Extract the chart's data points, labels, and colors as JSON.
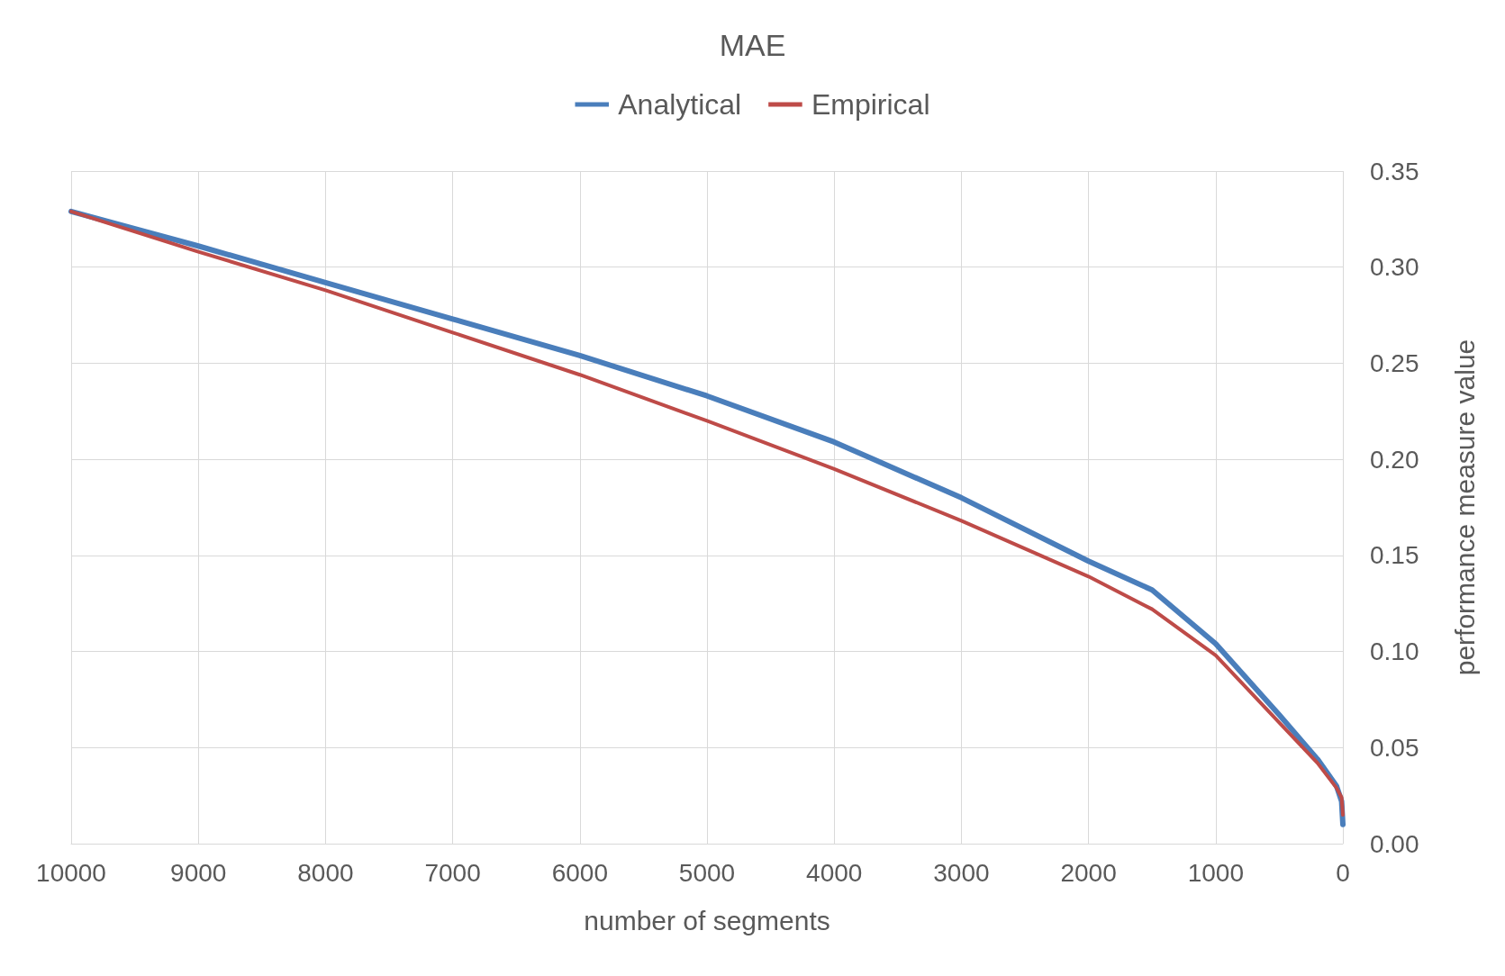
{
  "chart_data": {
    "type": "line",
    "title": "MAE",
    "xlabel": "number of segments",
    "ylabel": "performance measure value",
    "xlim": [
      10000,
      0
    ],
    "xticks": [
      10000,
      9000,
      8000,
      7000,
      6000,
      5000,
      4000,
      3000,
      2000,
      1000,
      0
    ],
    "ylim": [
      0,
      0.35
    ],
    "yticks": [
      {
        "value": 0,
        "label": "0.00"
      },
      {
        "value": 0.05,
        "label": "0.05"
      },
      {
        "value": 0.1,
        "label": "0.10"
      },
      {
        "value": 0.15,
        "label": "0.15"
      },
      {
        "value": 0.2,
        "label": "0.20"
      },
      {
        "value": 0.25,
        "label": "0.25"
      },
      {
        "value": 0.3,
        "label": "0.30"
      },
      {
        "value": 0.35,
        "label": "0.35"
      }
    ],
    "x": [
      10000,
      9000,
      8000,
      7000,
      6000,
      5000,
      4000,
      3000,
      2000,
      1500,
      1000,
      500,
      200,
      50,
      10,
      0
    ],
    "series": [
      {
        "name": "Analytical",
        "color": "#4a7ebb",
        "values": [
          0.329,
          0.311,
          0.292,
          0.273,
          0.254,
          0.233,
          0.209,
          0.18,
          0.147,
          0.132,
          0.104,
          0.067,
          0.044,
          0.03,
          0.022,
          0.01
        ]
      },
      {
        "name": "Empirical",
        "color": "#be4b48",
        "values": [
          0.329,
          0.308,
          0.288,
          0.266,
          0.244,
          0.22,
          0.195,
          0.168,
          0.139,
          0.122,
          0.098,
          0.063,
          0.042,
          0.029,
          0.024,
          0.015
        ]
      }
    ],
    "grid": true,
    "legend": "top",
    "marker": "none",
    "line_style": "solid"
  }
}
